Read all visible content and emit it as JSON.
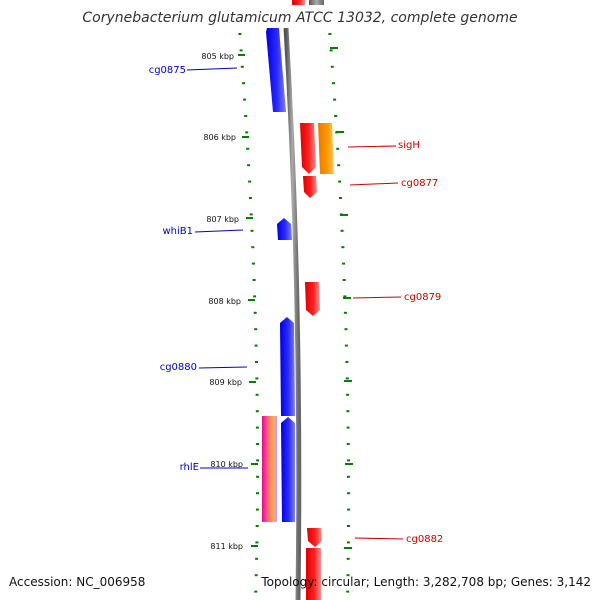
{
  "title": "Corynebacterium glutamicum ATCC 13032, complete genome",
  "accession": "Accession: NC_006958",
  "topology": "Topology: circular; Length: 3,282,708 bp; Genes: 3,142",
  "colors": {
    "forward": "#ff0000",
    "reverse": "#0000ff",
    "rrna_orange": "#ff8800",
    "tick": "#008000",
    "backbone": "#808080"
  },
  "ticks": [
    {
      "label": "805 kbp",
      "kbp": 805
    },
    {
      "label": "806 kbp",
      "kbp": 806
    },
    {
      "label": "807 kbp",
      "kbp": 807
    },
    {
      "label": "808 kbp",
      "kbp": 808
    },
    {
      "label": "809 kbp",
      "kbp": 809
    },
    {
      "label": "810 kbp",
      "kbp": 810
    },
    {
      "label": "811 kbp",
      "kbp": 811
    }
  ],
  "gene_labels": [
    {
      "name": "cg0875",
      "strand": "reverse"
    },
    {
      "name": "sigH",
      "strand": "forward"
    },
    {
      "name": "cg0877",
      "strand": "forward"
    },
    {
      "name": "whiB1",
      "strand": "reverse"
    },
    {
      "name": "cg0879",
      "strand": "forward"
    },
    {
      "name": "cg0880",
      "strand": "reverse"
    },
    {
      "name": "rhlE",
      "strand": "reverse"
    },
    {
      "name": "cg0882",
      "strand": "forward"
    }
  ]
}
